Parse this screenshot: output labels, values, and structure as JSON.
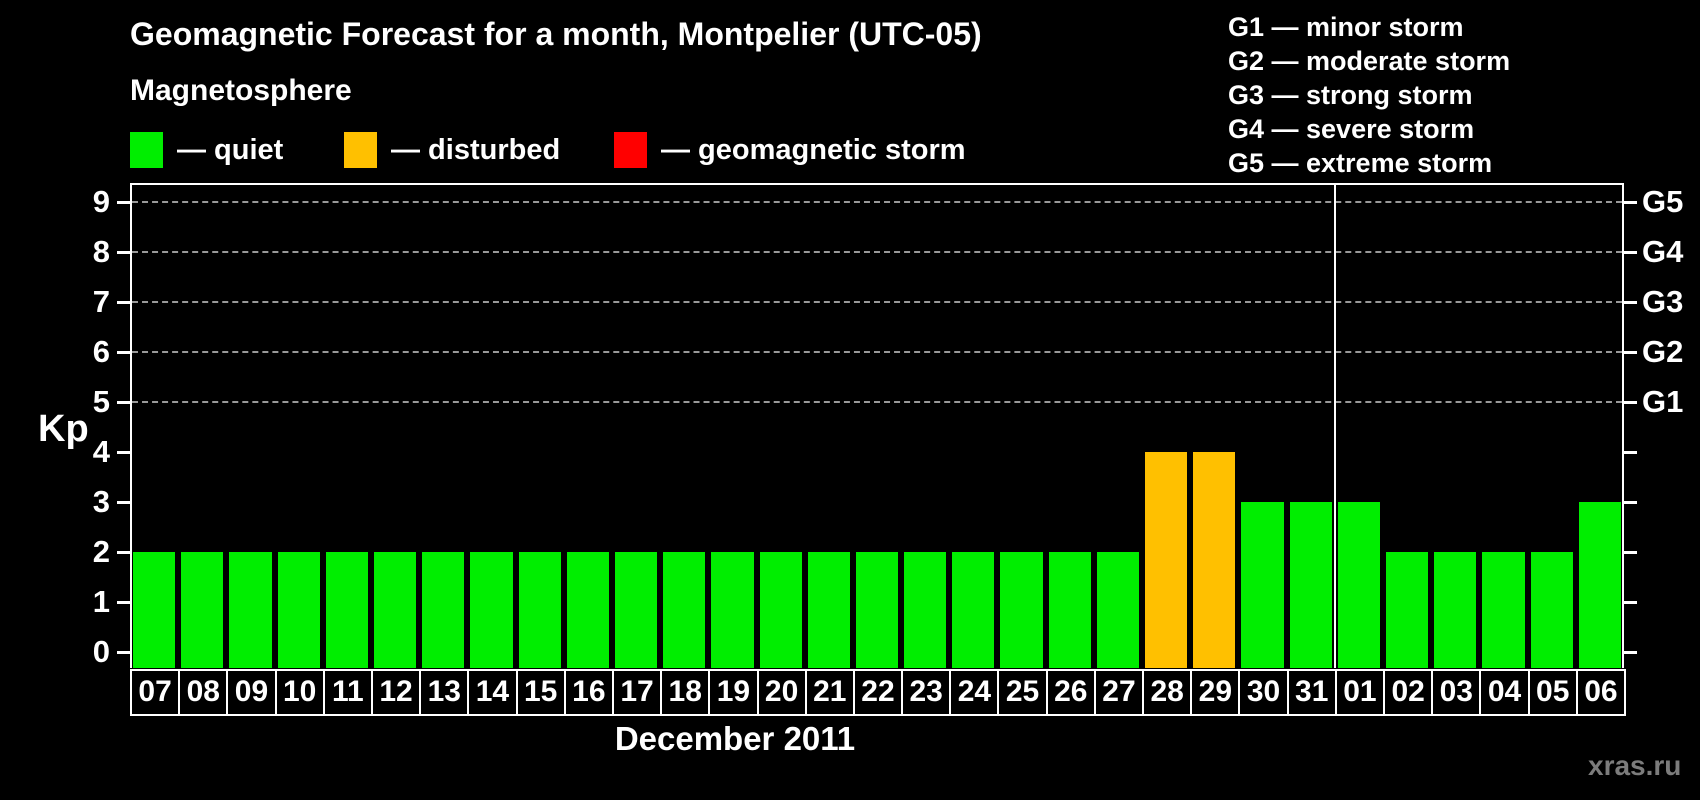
{
  "chart_data": {
    "type": "bar",
    "title": "Geomagnetic Forecast for a month, Montpelier (UTC-05)",
    "xlabel": "December 2011",
    "ylabel": "Kp",
    "ylim": [
      0,
      9
    ],
    "y_ticks": [
      0,
      1,
      2,
      3,
      4,
      5,
      6,
      7,
      8,
      9
    ],
    "grid": {
      "style": "dashed",
      "lines_at_kp": [
        5,
        6,
        7,
        8,
        9
      ]
    },
    "legend": {
      "title": "Magnetosphere",
      "position": "top-left",
      "items": [
        {
          "label": "— quiet",
          "status": "quiet",
          "color": "#00ee00"
        },
        {
          "label": "— disturbed",
          "status": "disturbed",
          "color": "#ffc000"
        },
        {
          "label": "— geomagnetic storm",
          "status": "storm",
          "color": "#ff0000"
        }
      ]
    },
    "g_legend": {
      "position": "top-right",
      "items": [
        "G1 — minor storm",
        "G2 — moderate storm",
        "G3 — strong storm",
        "G4 — severe storm",
        "G5 — extreme storm"
      ]
    },
    "right_axis": [
      {
        "kp": 5,
        "label": "G1"
      },
      {
        "kp": 6,
        "label": "G2"
      },
      {
        "kp": 7,
        "label": "G3"
      },
      {
        "kp": 8,
        "label": "G4"
      },
      {
        "kp": 9,
        "label": "G5"
      }
    ],
    "categories": [
      "07",
      "08",
      "09",
      "10",
      "11",
      "12",
      "13",
      "14",
      "15",
      "16",
      "17",
      "18",
      "19",
      "20",
      "21",
      "22",
      "23",
      "24",
      "25",
      "26",
      "27",
      "28",
      "29",
      "30",
      "31",
      "01",
      "02",
      "03",
      "04",
      "05",
      "06"
    ],
    "values": [
      2,
      2,
      2,
      2,
      2,
      2,
      2,
      2,
      2,
      2,
      2,
      2,
      2,
      2,
      2,
      2,
      2,
      2,
      2,
      2,
      2,
      4,
      4,
      3,
      3,
      3,
      2,
      2,
      2,
      2,
      3
    ],
    "statuses": [
      "quiet",
      "quiet",
      "quiet",
      "quiet",
      "quiet",
      "quiet",
      "quiet",
      "quiet",
      "quiet",
      "quiet",
      "quiet",
      "quiet",
      "quiet",
      "quiet",
      "quiet",
      "quiet",
      "quiet",
      "quiet",
      "quiet",
      "quiet",
      "quiet",
      "disturbed",
      "disturbed",
      "quiet",
      "quiet",
      "quiet",
      "quiet",
      "quiet",
      "quiet",
      "quiet",
      "quiet"
    ],
    "status_colors": {
      "quiet": "#00ee00",
      "disturbed": "#ffc000",
      "storm": "#ff0000"
    },
    "month_separator_after_index": 24
  },
  "footer": {
    "watermark": "xras.ru"
  }
}
